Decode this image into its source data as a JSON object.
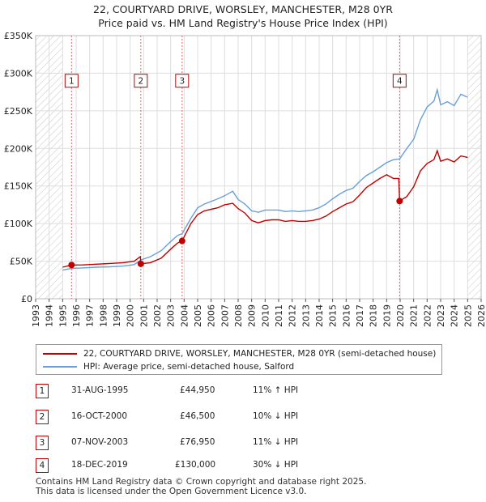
{
  "title_line1": "22, COURTYARD DRIVE, WORSLEY, MANCHESTER, M28 0YR",
  "title_line2": "Price paid vs. HM Land Registry's House Price Index (HPI)",
  "colors": {
    "property": "#c00000",
    "hpi": "#6a9fd8",
    "grid": "#dddddd",
    "marker_line": "#e06666",
    "hatch": "#999999"
  },
  "chart_data": {
    "type": "line",
    "title": "Price paid vs. HM Land Registry's House Price Index (HPI)",
    "xlabel": "",
    "ylabel": "",
    "xlim": [
      1993,
      2026
    ],
    "ylim": [
      0,
      350000
    ],
    "y_ticks": [
      0,
      50000,
      100000,
      150000,
      200000,
      250000,
      300000,
      350000
    ],
    "y_tick_labels": [
      "£0",
      "£50K",
      "£100K",
      "£150K",
      "£200K",
      "£250K",
      "£300K",
      "£350K"
    ],
    "x_ticks": [
      1993,
      1994,
      1995,
      1996,
      1997,
      1998,
      1999,
      2000,
      2001,
      2002,
      2003,
      2004,
      2005,
      2006,
      2007,
      2008,
      2009,
      2010,
      2011,
      2012,
      2013,
      2014,
      2015,
      2016,
      2017,
      2018,
      2019,
      2020,
      2021,
      2022,
      2023,
      2024,
      2025,
      2026
    ],
    "x_tick_labels": [
      "1993",
      "1994",
      "1995",
      "1996",
      "1997",
      "1998",
      "1999",
      "2000",
      "2001",
      "2002",
      "2003",
      "2004",
      "2005",
      "2006",
      "2007",
      "2008",
      "2009",
      "2010",
      "2011",
      "2012",
      "2013",
      "2014",
      "2015",
      "2016",
      "2017",
      "2018",
      "2019",
      "2020",
      "2021",
      "2022",
      "2023",
      "2024",
      "2025",
      "2026"
    ],
    "hatched_ranges": [
      [
        1993,
        1995.0
      ],
      [
        2025.0,
        2026
      ]
    ],
    "series": [
      {
        "name": "22, COURTYARD DRIVE, WORSLEY, MANCHESTER, M28 0YR (semi-detached house)",
        "x": [
          1995.0,
          1995.66,
          1996.5,
          1997.5,
          1998.5,
          1999.5,
          2000.3,
          2000.75,
          2000.8,
          2001.5,
          2002.3,
          2003.0,
          2003.5,
          2003.85,
          2004.5,
          2005.0,
          2005.5,
          2006.5,
          2007.0,
          2007.6,
          2008.0,
          2008.5,
          2009.0,
          2009.5,
          2010.0,
          2010.5,
          2011.0,
          2011.5,
          2012.0,
          2012.5,
          2013.0,
          2013.5,
          2014.0,
          2014.5,
          2015.0,
          2015.5,
          2016.0,
          2016.5,
          2017.0,
          2017.5,
          2018.0,
          2018.5,
          2019.0,
          2019.5,
          2019.9,
          2019.96,
          2020.5,
          2021.0,
          2021.5,
          2022.0,
          2022.5,
          2022.75,
          2023.0,
          2023.5,
          2024.0,
          2024.5,
          2025.0
        ],
        "values": [
          42000,
          44950,
          45000,
          46000,
          47000,
          48000,
          50000,
          56000,
          46500,
          48000,
          54000,
          66000,
          74000,
          76950,
          100000,
          112000,
          117000,
          121000,
          125000,
          127000,
          120000,
          114000,
          104000,
          101000,
          104000,
          105000,
          105000,
          103000,
          104000,
          103000,
          103000,
          104000,
          106000,
          110000,
          116000,
          121000,
          126000,
          129000,
          138000,
          148000,
          154000,
          160000,
          165000,
          160000,
          160000,
          130000,
          136000,
          149000,
          170000,
          180000,
          185000,
          197000,
          183000,
          186000,
          182000,
          190000,
          188000
        ]
      },
      {
        "name": "HPI: Average price, semi-detached house, Salford",
        "x": [
          1995.0,
          1995.66,
          1996.5,
          1997.5,
          1998.5,
          1999.5,
          2000.3,
          2000.8,
          2001.5,
          2002.3,
          2003.0,
          2003.5,
          2003.85,
          2004.5,
          2005.0,
          2005.5,
          2006.5,
          2007.0,
          2007.6,
          2008.0,
          2008.5,
          2009.0,
          2009.5,
          2010.0,
          2010.5,
          2011.0,
          2011.5,
          2012.0,
          2012.5,
          2013.0,
          2013.5,
          2014.0,
          2014.5,
          2015.0,
          2015.5,
          2016.0,
          2016.5,
          2017.0,
          2017.5,
          2018.0,
          2018.5,
          2019.0,
          2019.5,
          2019.96,
          2020.5,
          2021.0,
          2021.5,
          2022.0,
          2022.5,
          2022.75,
          2023.0,
          2023.5,
          2024.0,
          2024.5,
          2025.0
        ],
        "values": [
          38000,
          40500,
          41000,
          42000,
          42500,
          43500,
          45500,
          51700,
          56000,
          64000,
          76000,
          84000,
          86500,
          107000,
          121000,
          126000,
          133000,
          137000,
          143000,
          132000,
          126000,
          117000,
          115000,
          118000,
          118000,
          118000,
          116000,
          117000,
          116000,
          117000,
          118000,
          121000,
          126000,
          133000,
          139000,
          144000,
          147000,
          156000,
          164000,
          169000,
          175000,
          181000,
          185000,
          186000,
          200000,
          212000,
          238000,
          255000,
          263000,
          278000,
          258000,
          262000,
          257000,
          272000,
          268000
        ]
      }
    ],
    "sale_points": [
      {
        "label": "1",
        "x": 1995.66,
        "value": 44950
      },
      {
        "label": "2",
        "x": 2000.79,
        "value": 46500
      },
      {
        "label": "3",
        "x": 2003.85,
        "value": 76950
      },
      {
        "label": "4",
        "x": 2019.96,
        "value": 130000
      }
    ],
    "marker_box_value": 290000
  },
  "legend": {
    "property_label": "22, COURTYARD DRIVE, WORSLEY, MANCHESTER, M28 0YR (semi-detached house)",
    "hpi_label": "HPI: Average price, semi-detached house, Salford"
  },
  "transactions": [
    {
      "num": "1",
      "date": "31-AUG-1995",
      "price": "£44,950",
      "hpi": "11% ↑ HPI"
    },
    {
      "num": "2",
      "date": "16-OCT-2000",
      "price": "£46,500",
      "hpi": "10% ↓ HPI"
    },
    {
      "num": "3",
      "date": "07-NOV-2003",
      "price": "£76,950",
      "hpi": "11% ↓ HPI"
    },
    {
      "num": "4",
      "date": "18-DEC-2019",
      "price": "£130,000",
      "hpi": "30% ↓ HPI"
    }
  ],
  "footer_line1": "Contains HM Land Registry data © Crown copyright and database right 2025.",
  "footer_line2": "This data is licensed under the Open Government Licence v3.0."
}
